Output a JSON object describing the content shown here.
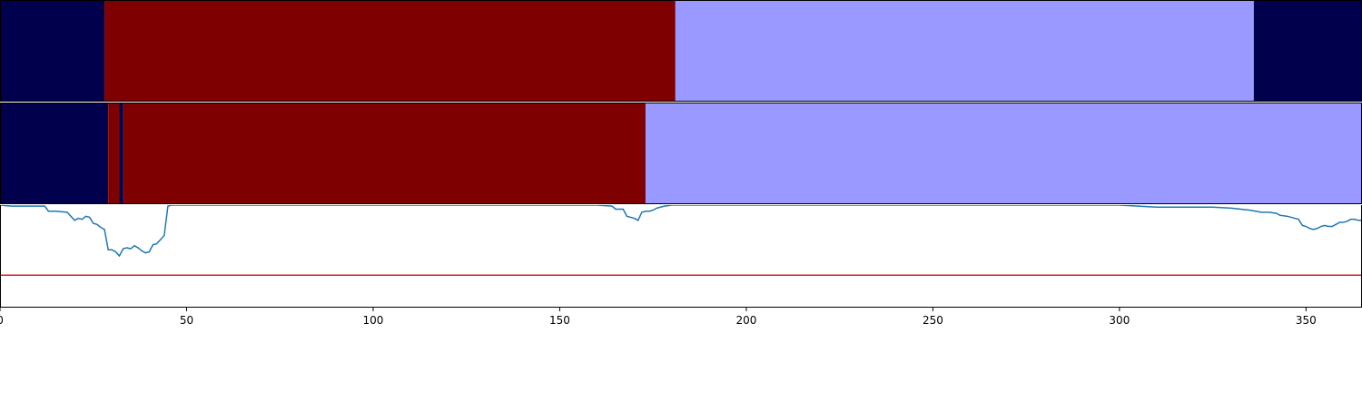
{
  "chart_data": {
    "type": "segmented-timeline",
    "xlim": [
      0,
      365
    ],
    "x_ticks": [
      0,
      50,
      100,
      150,
      200,
      250,
      300,
      350
    ],
    "colors": {
      "state_a": "#00004c",
      "state_b": "#7f0000",
      "state_c": "#9999ff",
      "signal_line": "#1f77b4",
      "threshold_line": "#e31a1c"
    },
    "band_1": [
      {
        "start": 0,
        "end": 28,
        "state": "state_a"
      },
      {
        "start": 28,
        "end": 181,
        "state": "state_b"
      },
      {
        "start": 181,
        "end": 336,
        "state": "state_c"
      },
      {
        "start": 336,
        "end": 365,
        "state": "state_a"
      }
    ],
    "band_2": [
      {
        "start": 0,
        "end": 29,
        "state": "state_a"
      },
      {
        "start": 29,
        "end": 32,
        "state": "state_b"
      },
      {
        "start": 32,
        "end": 33,
        "state": "state_a"
      },
      {
        "start": 33,
        "end": 173,
        "state": "state_b"
      },
      {
        "start": 173,
        "end": 365,
        "state": "state_c"
      }
    ],
    "signal": {
      "ylim": [
        0,
        1
      ],
      "threshold": 0.31,
      "x": [
        0,
        3,
        6,
        9,
        12,
        13,
        15,
        18,
        20,
        21,
        22,
        23,
        24,
        25,
        26,
        27,
        28,
        29,
        30,
        31,
        32,
        33,
        34,
        35,
        36,
        37,
        38,
        39,
        40,
        41,
        42,
        43,
        44,
        45,
        46,
        50,
        100,
        150,
        160,
        164,
        165,
        167,
        168,
        170,
        171,
        172,
        173,
        174,
        175,
        176,
        178,
        180,
        185,
        190,
        200,
        250,
        300,
        305,
        310,
        315,
        320,
        325,
        330,
        335,
        338,
        340,
        342,
        343,
        345,
        346,
        347,
        348,
        349,
        350,
        351,
        352,
        353,
        354,
        355,
        356,
        357,
        358,
        359,
        360,
        361,
        362,
        363,
        364,
        365
      ],
      "y": [
        1.0,
        0.99,
        0.99,
        0.99,
        0.99,
        0.94,
        0.94,
        0.93,
        0.85,
        0.87,
        0.86,
        0.89,
        0.88,
        0.82,
        0.81,
        0.78,
        0.76,
        0.56,
        0.56,
        0.54,
        0.5,
        0.57,
        0.58,
        0.57,
        0.6,
        0.58,
        0.55,
        0.53,
        0.54,
        0.61,
        0.62,
        0.66,
        0.7,
        0.99,
        1.0,
        1.0,
        1.0,
        1.0,
        1.0,
        0.99,
        0.96,
        0.96,
        0.89,
        0.87,
        0.85,
        0.93,
        0.94,
        0.94,
        0.95,
        0.97,
        0.99,
        1.0,
        1.0,
        1.0,
        1.0,
        1.0,
        1.0,
        0.99,
        0.98,
        0.98,
        0.98,
        0.98,
        0.97,
        0.95,
        0.93,
        0.93,
        0.92,
        0.9,
        0.89,
        0.88,
        0.87,
        0.86,
        0.8,
        0.79,
        0.77,
        0.76,
        0.77,
        0.79,
        0.8,
        0.79,
        0.79,
        0.81,
        0.83,
        0.83,
        0.84,
        0.86,
        0.86,
        0.85,
        0.85
      ]
    }
  }
}
